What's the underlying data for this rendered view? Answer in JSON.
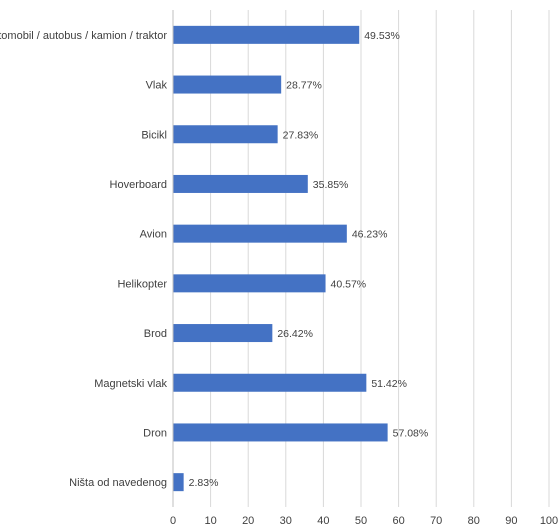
{
  "chart_data": {
    "type": "bar",
    "orientation": "horizontal",
    "title": "",
    "xlabel": "",
    "ylabel": "",
    "categories": [
      "Automobil / autobus / kamion / traktor",
      "Vlak",
      "Bicikl",
      "Hoverboard",
      "Avion",
      "Helikopter",
      "Brod",
      "Magnetski vlak",
      "Dron",
      "Ništa od navedenog"
    ],
    "values": [
      49.53,
      28.77,
      27.83,
      35.85,
      46.23,
      40.57,
      26.42,
      51.42,
      57.08,
      2.83
    ],
    "value_labels": [
      "49.53%",
      "28.77%",
      "27.83%",
      "35.85%",
      "46.23%",
      "40.57%",
      "26.42%",
      "51.42%",
      "57.08%",
      "2.83%"
    ],
    "xlim": [
      0,
      100
    ],
    "x_ticks": [
      "0",
      "10",
      "20",
      "30",
      "40",
      "50",
      "60",
      "70",
      "80",
      "90",
      "100"
    ],
    "grid": true,
    "legend": "none",
    "bar_color": "#4472c4",
    "grid_color": "#d9d9d9"
  }
}
